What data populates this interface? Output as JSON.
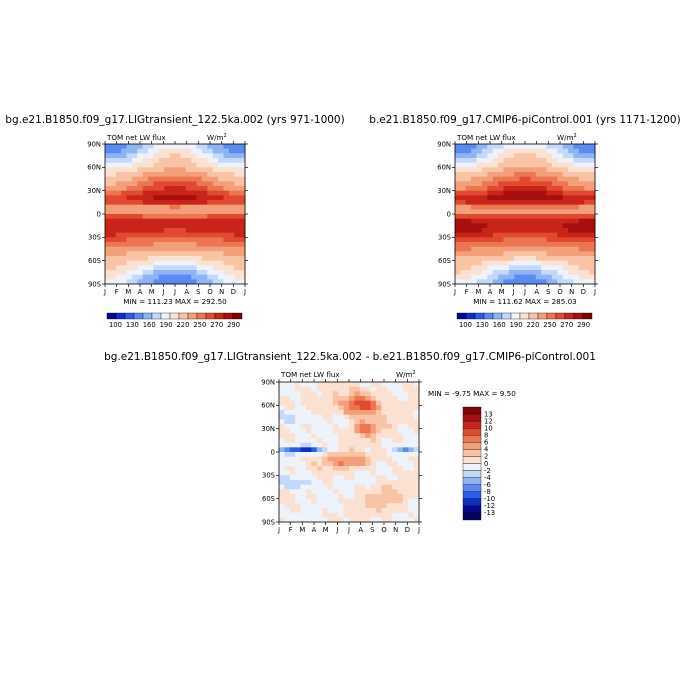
{
  "chart_data": [
    {
      "type": "heatmap",
      "title": "bg.e21.B1850.f09_g17.LIGtransient_122.5ka.002 (yrs 971-1000)",
      "left_label": "TOM net LW flux",
      "units_base": "W/m",
      "units_exp": "2",
      "x_ticks": [
        "J",
        "F",
        "M",
        "A",
        "M",
        "J",
        "J",
        "A",
        "S",
        "O",
        "N",
        "D",
        "J"
      ],
      "y_ticks": [
        "90N",
        "60N",
        "30N",
        "0",
        "30S",
        "60S",
        "90S"
      ],
      "stats": "MIN = 111.23  MAX = 292.50",
      "min": 111.23,
      "max": 292.5,
      "colorbar_labels": [
        "100",
        "130",
        "160",
        "190",
        "220",
        "250",
        "270",
        "290"
      ],
      "colorbar_colors": [
        "#08088a",
        "#0f2fc4",
        "#2d5de6",
        "#5b8bf0",
        "#8fb4f6",
        "#c4d9fa",
        "#eef2fb",
        "#fbe1d2",
        "#f8c4a5",
        "#f3a07a",
        "#ec7652",
        "#e14a30",
        "#c8241a",
        "#a80f0f",
        "#7a0606"
      ]
    },
    {
      "type": "heatmap",
      "title": "b.e21.B1850.f09_g17.CMIP6-piControl.001 (yrs 1171-1200)",
      "left_label": "TOM net LW flux",
      "units_base": "W/m",
      "units_exp": "2",
      "x_ticks": [
        "J",
        "F",
        "M",
        "A",
        "M",
        "J",
        "J",
        "A",
        "S",
        "O",
        "N",
        "D",
        "J"
      ],
      "y_ticks": [
        "90N",
        "60N",
        "30N",
        "0",
        "30S",
        "60S",
        "90S"
      ],
      "stats": "MIN = 111.62  MAX = 285.03",
      "min": 111.62,
      "max": 285.03,
      "colorbar_labels": [
        "100",
        "130",
        "160",
        "190",
        "220",
        "250",
        "270",
        "290"
      ],
      "colorbar_colors": [
        "#08088a",
        "#0f2fc4",
        "#2d5de6",
        "#5b8bf0",
        "#8fb4f6",
        "#c4d9fa",
        "#eef2fb",
        "#fbe1d2",
        "#f8c4a5",
        "#f3a07a",
        "#ec7652",
        "#e14a30",
        "#c8241a",
        "#a80f0f",
        "#7a0606"
      ]
    },
    {
      "type": "heatmap",
      "title": "bg.e21.B1850.f09_g17.LIGtransient_122.5ka.002 - b.e21.B1850.f09_g17.CMIP6-piControl.001",
      "left_label": "TOM net LW flux",
      "units_base": "W/m",
      "units_exp": "2",
      "x_ticks": [
        "J",
        "F",
        "M",
        "A",
        "M",
        "J",
        "J",
        "A",
        "S",
        "O",
        "N",
        "D",
        "J"
      ],
      "y_ticks": [
        "90N",
        "60N",
        "30N",
        "0",
        "30S",
        "60S",
        "90S"
      ],
      "stats": "MIN = -9.75 MAX =   9.50",
      "min": -9.75,
      "max": 9.5,
      "colorbar_labels": [
        "13",
        "12",
        "10",
        "8",
        "6",
        "4",
        "2",
        "0",
        "-2",
        "-4",
        "-6",
        "-8",
        "-10",
        "-12",
        "-13"
      ],
      "colorbar_colors": [
        "#7a0606",
        "#a80f0f",
        "#c8241a",
        "#e14a30",
        "#ec7652",
        "#f3a07a",
        "#f8c4a5",
        "#fbe1d2",
        "#eef2fb",
        "#c4d9fa",
        "#8fb4f6",
        "#5b8bf0",
        "#2d5de6",
        "#0f2fc4",
        "#08088a",
        "#050560"
      ]
    }
  ]
}
